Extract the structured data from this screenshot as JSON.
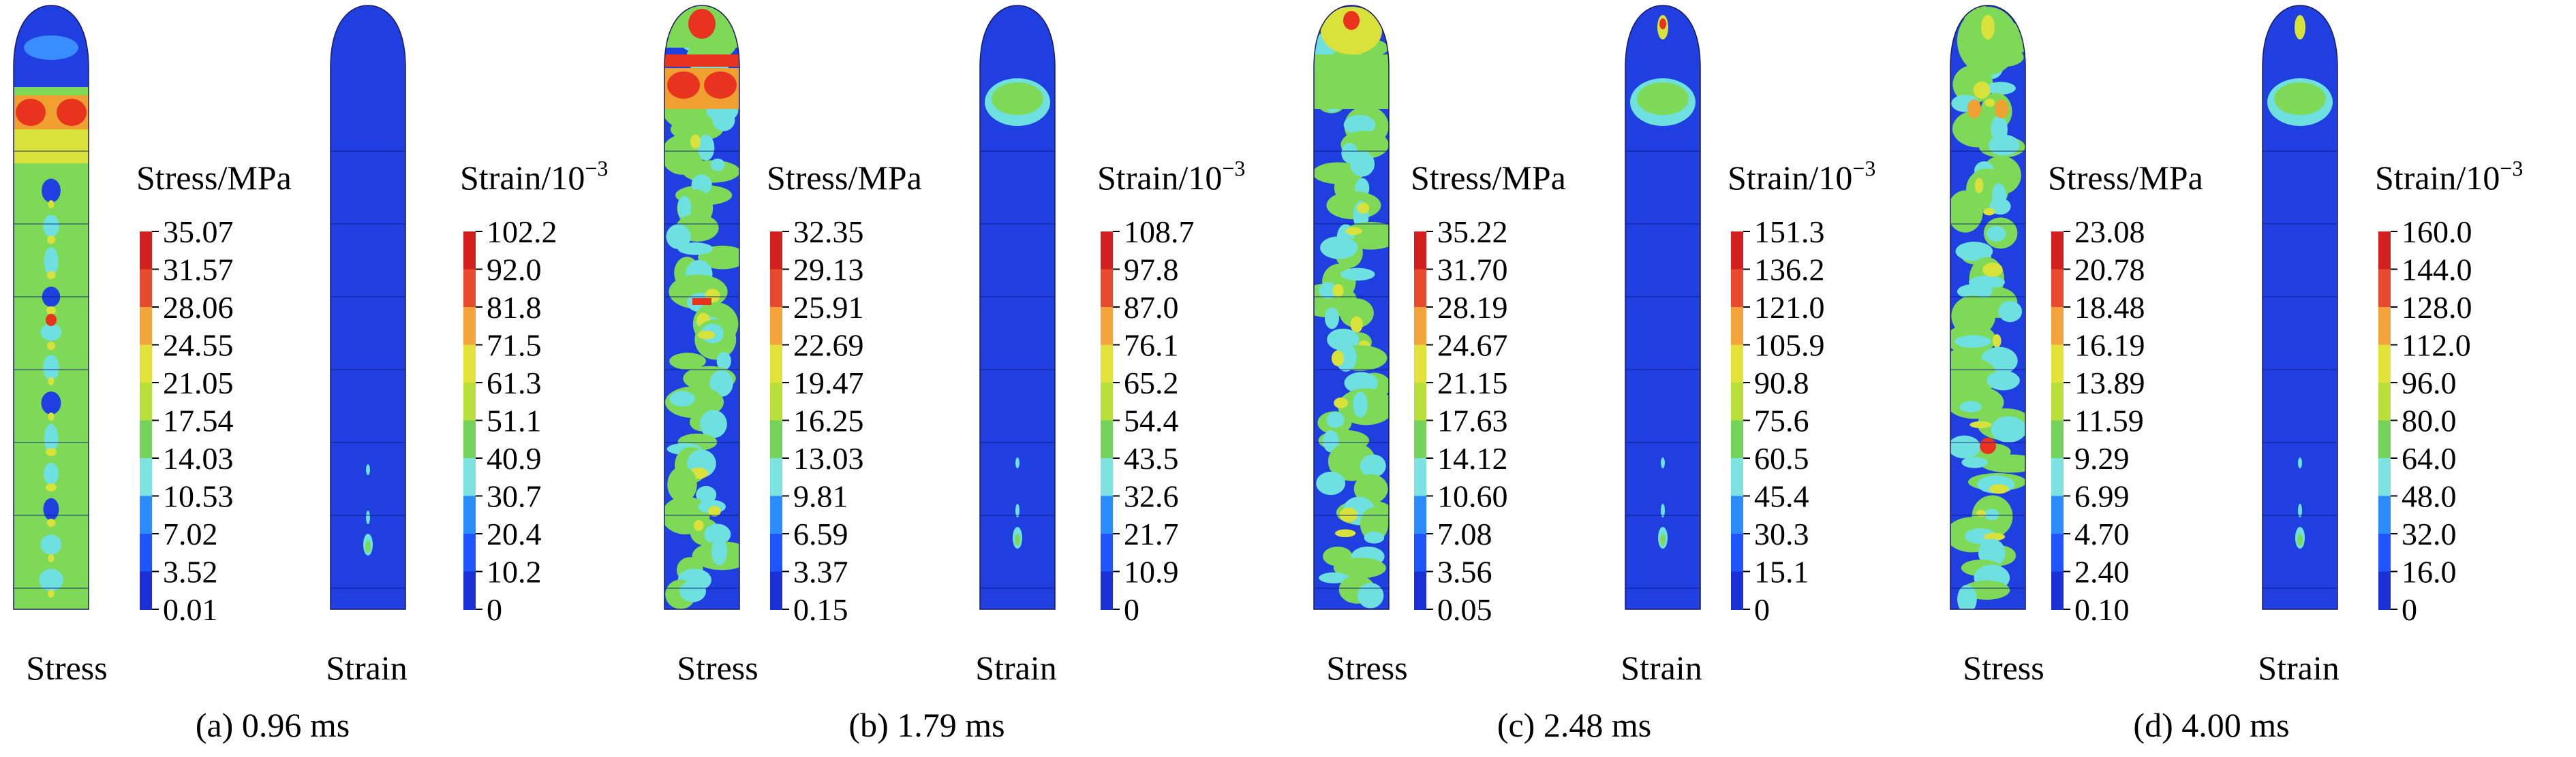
{
  "figure": {
    "colormap": [
      "#1b2fd6",
      "#1e55ff",
      "#2b8cff",
      "#7de2e2",
      "#74d35a",
      "#8bd83a",
      "#b9e03a",
      "#e2e23a",
      "#f3a43a",
      "#e84a2e",
      "#d41f1f"
    ],
    "field_colors": {
      "base": "#1f3fe0",
      "light": "#3a8dff",
      "cyan": "#6fe0e0",
      "green": "#7ed957",
      "yellow": "#d9e23a",
      "orange": "#f0a030",
      "red": "#e8331f"
    },
    "panels": [
      {
        "id": "a",
        "caption": "(a) 0.96 ms",
        "stress": {
          "label": "Stress",
          "legend_title": "Stress/MPa",
          "ticks": [
            "35.07",
            "31.57",
            "28.06",
            "24.55",
            "21.05",
            "17.54",
            "14.03",
            "10.53",
            "7.02",
            "3.52",
            "0.01"
          ]
        },
        "strain": {
          "label": "Strain",
          "legend_title_base": "Strain/10",
          "legend_title_exp": "−3",
          "ticks": [
            "102.2",
            "92.0",
            "81.8",
            "71.5",
            "61.3",
            "51.1",
            "40.9",
            "30.7",
            "20.4",
            "10.2",
            "0"
          ]
        }
      },
      {
        "id": "b",
        "caption": "(b) 1.79 ms",
        "stress": {
          "label": "Stress",
          "legend_title": "Stress/MPa",
          "ticks": [
            "32.35",
            "29.13",
            "25.91",
            "22.69",
            "19.47",
            "16.25",
            "13.03",
            "9.81",
            "6.59",
            "3.37",
            "0.15"
          ]
        },
        "strain": {
          "label": "Strain",
          "legend_title_base": "Strain/10",
          "legend_title_exp": "−3",
          "ticks": [
            "108.7",
            "97.8",
            "87.0",
            "76.1",
            "65.2",
            "54.4",
            "43.5",
            "32.6",
            "21.7",
            "10.9",
            "0"
          ]
        }
      },
      {
        "id": "c",
        "caption": "(c) 2.48 ms",
        "stress": {
          "label": "Stress",
          "legend_title": "Stress/MPa",
          "ticks": [
            "35.22",
            "31.70",
            "28.19",
            "24.67",
            "21.15",
            "17.63",
            "14.12",
            "10.60",
            "7.08",
            "3.56",
            "0.05"
          ]
        },
        "strain": {
          "label": "Strain",
          "legend_title_base": "Strain/10",
          "legend_title_exp": "−3",
          "ticks": [
            "151.3",
            "136.2",
            "121.0",
            "105.9",
            "90.8",
            "75.6",
            "60.5",
            "45.4",
            "30.3",
            "15.1",
            "0"
          ]
        }
      },
      {
        "id": "d",
        "caption": "(d) 4.00 ms",
        "stress": {
          "label": "Stress",
          "legend_title": "Stress/MPa",
          "ticks": [
            "23.08",
            "20.78",
            "18.48",
            "16.19",
            "13.89",
            "11.59",
            "9.29",
            "6.99",
            "4.70",
            "2.40",
            "0.10"
          ]
        },
        "strain": {
          "label": "Strain",
          "legend_title_base": "Strain/10",
          "legend_title_exp": "−3",
          "ticks": [
            "160.0",
            "144.0",
            "128.0",
            "112.0",
            "96.0",
            "80.0",
            "64.0",
            "48.0",
            "32.0",
            "16.0",
            "0"
          ]
        }
      }
    ]
  }
}
